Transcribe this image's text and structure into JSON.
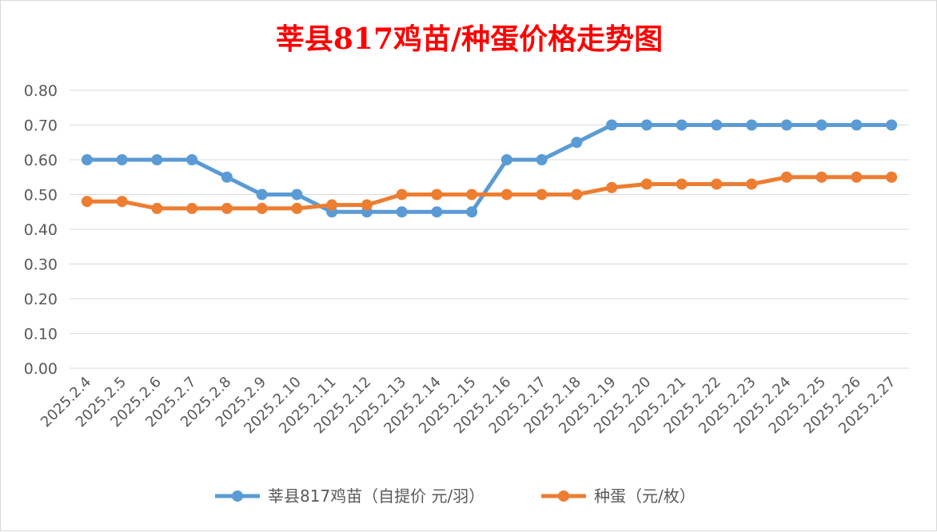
{
  "chart_data": {
    "type": "line",
    "title": "莘县817鸡苗/种蛋价格走势图",
    "xlabel": "",
    "ylabel": "",
    "ylim": [
      0,
      0.8
    ],
    "yticks": [
      "0.00",
      "0.10",
      "0.20",
      "0.30",
      "0.40",
      "0.50",
      "0.60",
      "0.70",
      "0.80"
    ],
    "grid": true,
    "legend_position": "bottom",
    "categories": [
      "2025.2.4",
      "2025.2.5",
      "2025.2.6",
      "2025.2.7",
      "2025.2.8",
      "2025.2.9",
      "2025.2.10",
      "2025.2.11",
      "2025.2.12",
      "2025.2.13",
      "2025.2.14",
      "2025.2.15",
      "2025.2.16",
      "2025.2.17",
      "2025.2.18",
      "2025.2.19",
      "2025.2.20",
      "2025.2.21",
      "2025.2.22",
      "2025.2.23",
      "2025.2.24",
      "2025.2.25",
      "2025.2.26",
      "2025.2.27"
    ],
    "series": [
      {
        "name": "莘县817鸡苗（自提价 元/羽）",
        "color": "#5b9bd5",
        "values": [
          0.6,
          0.6,
          0.6,
          0.6,
          0.55,
          0.5,
          0.5,
          0.45,
          0.45,
          0.45,
          0.45,
          0.45,
          0.6,
          0.6,
          0.65,
          0.7,
          0.7,
          0.7,
          0.7,
          0.7,
          0.7,
          0.7,
          0.7,
          0.7
        ]
      },
      {
        "name": "种蛋（元/枚）",
        "color": "#ed7d31",
        "values": [
          0.48,
          0.48,
          0.46,
          0.46,
          0.46,
          0.46,
          0.46,
          0.47,
          0.47,
          0.5,
          0.5,
          0.5,
          0.5,
          0.5,
          0.5,
          0.52,
          0.53,
          0.53,
          0.53,
          0.53,
          0.55,
          0.55,
          0.55,
          0.55
        ]
      }
    ]
  }
}
